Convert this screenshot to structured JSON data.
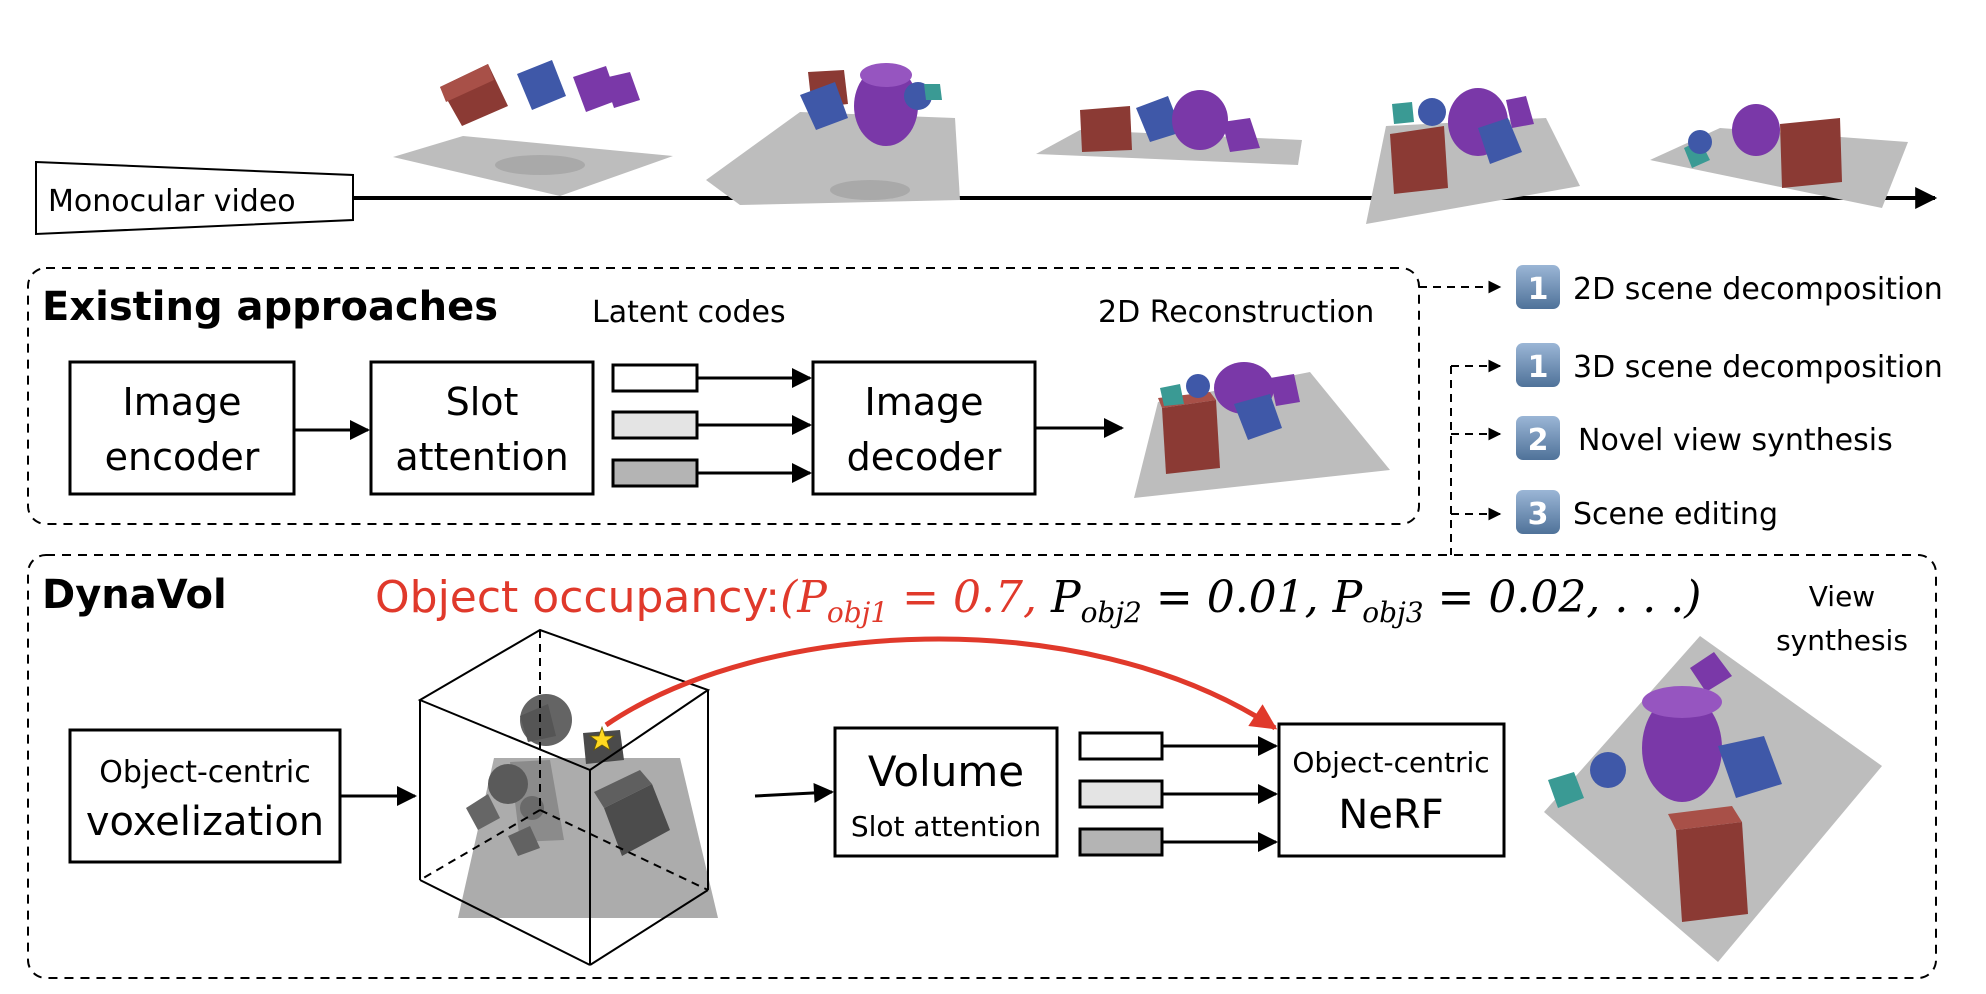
{
  "top": {
    "video_label": "Monocular video"
  },
  "existing": {
    "title": "Existing approaches",
    "latent_label": "Latent codes",
    "recon_label": "2D Reconstruction",
    "box_encoder": [
      "Image",
      "encoder"
    ],
    "box_slot": [
      "Slot",
      "attention"
    ],
    "box_decoder": [
      "Image",
      "decoder"
    ]
  },
  "outputs": [
    {
      "badge": "1",
      "label": "2D scene decomposition"
    },
    {
      "badge": "1",
      "label": "3D scene decomposition"
    },
    {
      "badge": "2",
      "label": "Novel view synthesis"
    },
    {
      "badge": "3",
      "label": "Scene editing"
    }
  ],
  "dynavol": {
    "title": "DynaVol",
    "occupancy_label": "Object occupancy:",
    "formula": {
      "open": "(",
      "p1": "P",
      "p1_sub": "obj1",
      "p1_val": " = 0.7,",
      "p2": " P",
      "p2_sub": "obj2",
      "p2_val": " = 0.01,",
      "p3": " P",
      "p3_sub": "obj3",
      "p3_val": " = 0.02, . . .)"
    },
    "view_synthesis": [
      "View",
      "synthesis"
    ],
    "box_voxel": [
      "Object-centric",
      "voxelization"
    ],
    "box_volume": [
      "Volume",
      "Slot attention"
    ],
    "box_nerf": [
      "Object-centric",
      "NeRF"
    ]
  },
  "colors": {
    "red_accent": "#e0392b",
    "badge_blue": "#6b8fb8",
    "cube_red": "#8b3a34",
    "cube_blue": "#3f58a8",
    "purple": "#7a38a8",
    "teal": "#3a9a94",
    "ground": "#b8b8b8",
    "code_white": "#ffffff",
    "code_light": "#e4e4e4",
    "code_dark": "#b4b4b4"
  }
}
